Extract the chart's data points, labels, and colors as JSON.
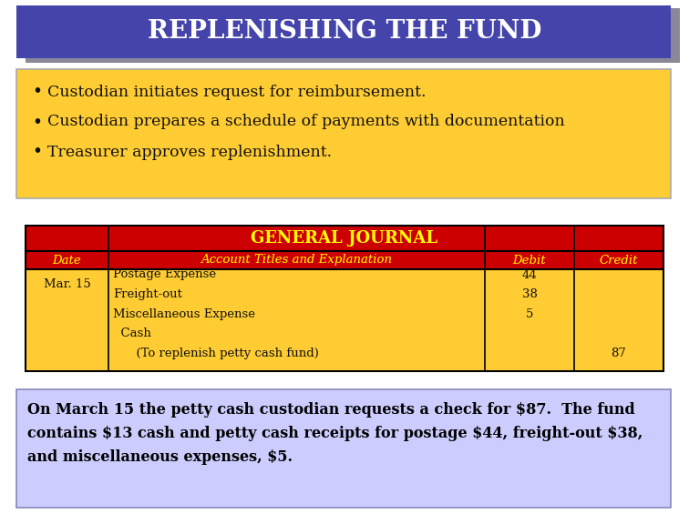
{
  "title": "REPLENISHING THE FUND",
  "title_bg": "#4444aa",
  "title_shadow": "#888899",
  "title_color": "#ffffff",
  "title_fontsize": 20,
  "slide_bg": "#ffffff",
  "bullet_bg": "#ffcc33",
  "bullet_border": "#aaaaaa",
  "bullets": [
    "Custodian initiates request for reimbursement.",
    "Custodian prepares a schedule of payments with documentation",
    "Treasurer approves replenishment."
  ],
  "bullet_fontsize": 12.5,
  "journal_title": "GENERAL JOURNAL",
  "journal_title_bg": "#cc0000",
  "journal_title_color": "#ffff00",
  "journal_header_bg": "#cc0000",
  "journal_header_color": "#ffff00",
  "journal_row_bg": "#ffcc33",
  "journal_border": "#000000",
  "journal_headers": [
    "Date",
    "Account Titles and Explanation",
    "Debit",
    "Credit"
  ],
  "journal_date": "Mar. 15",
  "journal_entries": [
    [
      "Postage Expense",
      "44",
      ""
    ],
    [
      "Freight-out",
      "38",
      ""
    ],
    [
      "Miscellaneous Expense",
      "5",
      ""
    ],
    [
      "  Cash",
      "",
      ""
    ],
    [
      "      (To replenish petty cash fund)",
      "",
      "87"
    ]
  ],
  "note_bg": "#ccccff",
  "note_border": "#8888bb",
  "note_text": "On March 15 the petty cash custodian requests a check for $87.  The fund\ncontains $13 cash and petty cash receipts for postage $44, freight-out $38,\nand miscellaneous expenses, $5.",
  "note_fontsize": 11.5
}
